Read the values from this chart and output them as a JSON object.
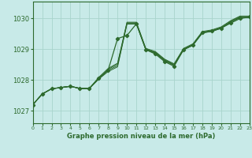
{
  "bg_color": "#c8eae8",
  "grid_color": "#a8d4cc",
  "line_color": "#2d6a2d",
  "xlabel": "Graphe pression niveau de la mer (hPa)",
  "xlim": [
    0,
    23
  ],
  "ylim": [
    1026.6,
    1030.55
  ],
  "yticks": [
    1027,
    1028,
    1029,
    1030
  ],
  "xticks": [
    0,
    1,
    2,
    3,
    4,
    5,
    6,
    7,
    8,
    9,
    10,
    11,
    12,
    13,
    14,
    15,
    16,
    17,
    18,
    19,
    20,
    21,
    22,
    23
  ],
  "series": [
    [
      1027.2,
      1027.55,
      1027.72,
      1027.76,
      1027.8,
      1027.73,
      1027.73,
      1028.03,
      1028.28,
      1028.43,
      1029.82,
      1029.82,
      1028.98,
      1028.88,
      1028.63,
      1028.48,
      1028.98,
      1029.13,
      1029.53,
      1029.58,
      1029.68,
      1029.88,
      1030.03,
      1030.03
    ],
    [
      1027.2,
      1027.55,
      1027.72,
      1027.76,
      1027.8,
      1027.73,
      1027.73,
      1028.05,
      1028.32,
      1028.47,
      1029.84,
      1029.84,
      1028.99,
      1028.89,
      1028.64,
      1028.49,
      1028.99,
      1029.14,
      1029.54,
      1029.59,
      1029.69,
      1029.89,
      1030.04,
      1030.04
    ],
    [
      1027.2,
      1027.55,
      1027.72,
      1027.76,
      1027.8,
      1027.73,
      1027.73,
      1028.07,
      1028.35,
      1028.52,
      1029.86,
      1029.86,
      1029.01,
      1028.91,
      1028.66,
      1028.51,
      1029.01,
      1029.16,
      1029.56,
      1029.61,
      1029.71,
      1029.91,
      1030.06,
      1030.06
    ],
    [
      1027.2,
      1027.55,
      1027.72,
      1027.76,
      1027.8,
      1027.73,
      1027.73,
      1028.09,
      1028.38,
      1028.55,
      1029.88,
      1029.88,
      1029.03,
      1028.93,
      1028.68,
      1028.53,
      1029.03,
      1029.18,
      1029.58,
      1029.63,
      1029.73,
      1029.93,
      1030.08,
      1030.08
    ]
  ],
  "main_x": [
    0,
    1,
    2,
    3,
    4,
    5,
    6,
    7,
    8,
    9,
    10,
    11,
    12,
    13,
    14,
    15,
    16,
    17,
    18,
    19,
    20,
    21,
    22,
    23
  ],
  "main_y": [
    1027.2,
    1027.55,
    1027.72,
    1027.76,
    1027.8,
    1027.73,
    1027.73,
    1028.05,
    1028.32,
    1029.35,
    1029.45,
    1029.83,
    1028.99,
    1028.85,
    1028.6,
    1028.45,
    1028.99,
    1029.14,
    1029.54,
    1029.59,
    1029.69,
    1029.85,
    1030.0,
    1030.05
  ]
}
